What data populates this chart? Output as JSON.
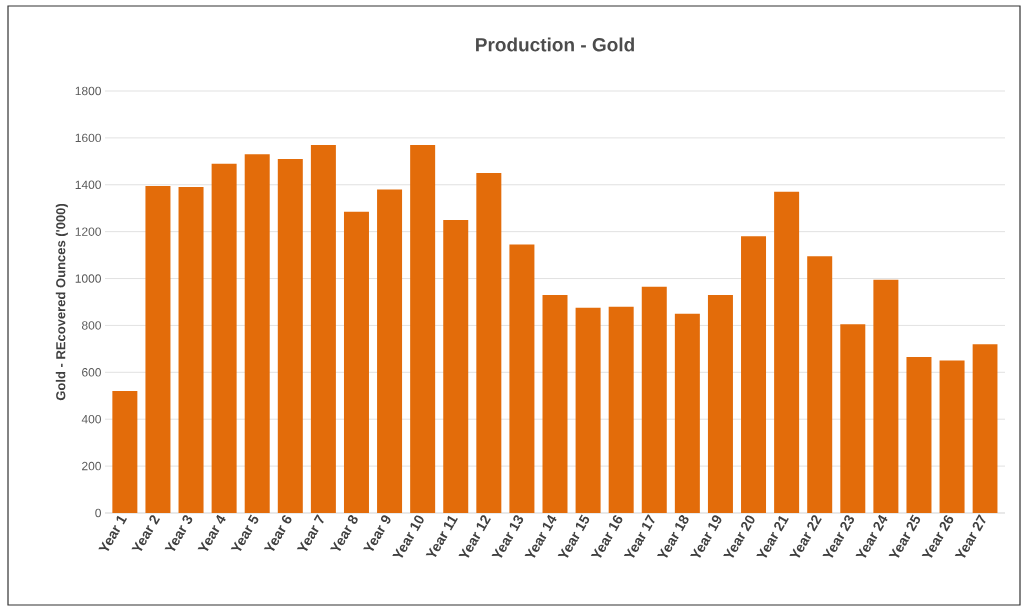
{
  "chart_data": {
    "type": "bar",
    "title": "Production - Gold",
    "ylabel": "Gold - REcovered Ounces ('000)",
    "categories": [
      "Year 1",
      "Year 2",
      "Year 3",
      "Year 4",
      "Year 5",
      "Year 6",
      "Year 7",
      "Year 8",
      "Year 9",
      "Year 10",
      "Year 11",
      "Year 12",
      "Year 13",
      "Year 14",
      "Year 15",
      "Year 16",
      "Year 17",
      "Year 18",
      "Year 19",
      "Year 20",
      "Year 21",
      "Year 22",
      "Year 23",
      "Year 24",
      "Year 25",
      "Year 26",
      "Year 27"
    ],
    "values": [
      520,
      1395,
      1390,
      1490,
      1530,
      1510,
      1570,
      1285,
      1380,
      1570,
      1250,
      1450,
      1145,
      930,
      875,
      880,
      965,
      850,
      930,
      1180,
      1370,
      1095,
      805,
      995,
      665,
      650,
      720
    ],
    "color": "#e36c0a",
    "ylim": [
      0,
      1800
    ],
    "yticks": [
      0,
      200,
      400,
      600,
      800,
      1000,
      1200,
      1400,
      1600,
      1800
    ],
    "grid": "y"
  }
}
